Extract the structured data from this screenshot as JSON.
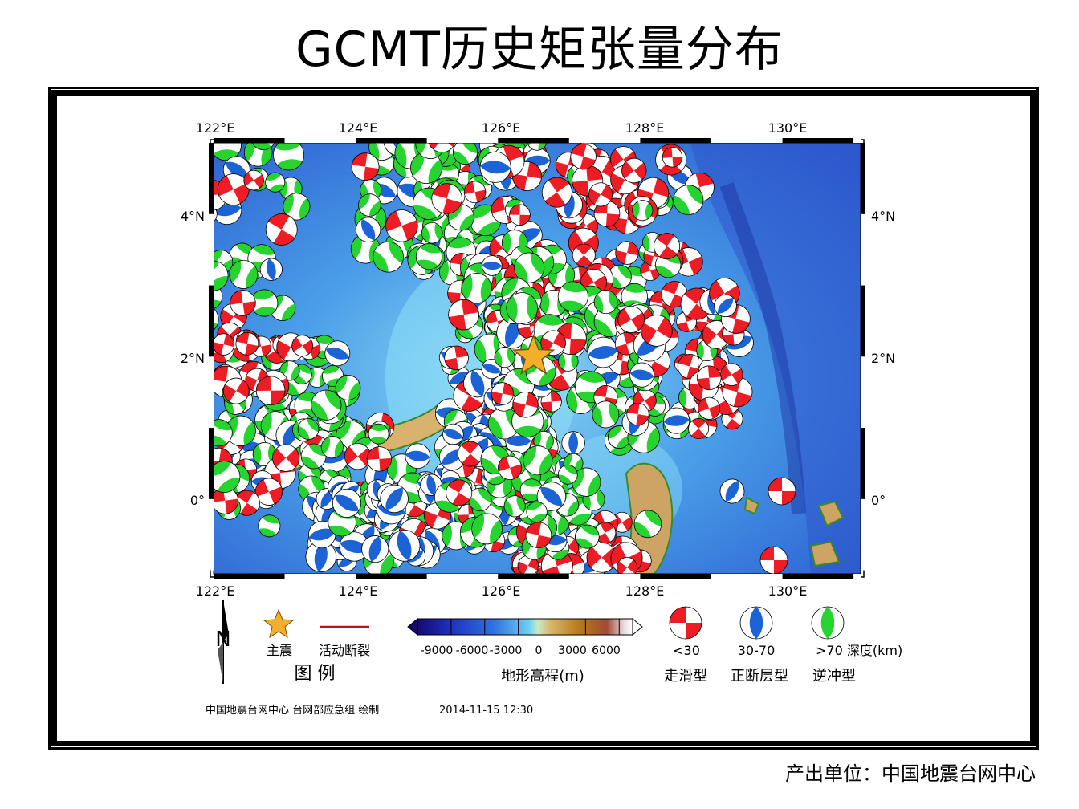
{
  "title": "GCMT历史矩张量分布",
  "map": {
    "lon_labels": [
      "122°E",
      "124°E",
      "126°E",
      "128°E",
      "130°E"
    ],
    "lat_labels": [
      "4°N",
      "2°N",
      "0°"
    ],
    "extent": {
      "lon_min": 122,
      "lon_max": 131.1,
      "lat_min": -1.05,
      "lat_max": 5.0
    },
    "mainshock": {
      "lon": 126.5,
      "lat": 2.0,
      "color": "#f2b02a"
    }
  },
  "legend": {
    "north_label": "N",
    "mainshock_label": "主震",
    "fault_label": "活动断裂",
    "legend_title": "图  例",
    "colorbar_ticks": [
      "-9000",
      "-6000",
      "-3000",
      "0",
      "3000",
      "6000"
    ],
    "colorbar_title": "地形高程(m)",
    "depth_labels": [
      "<30",
      "30-70",
      ">70 深度(km)"
    ],
    "type_labels": [
      "走滑型",
      "正断层型",
      "逆冲型"
    ],
    "depth_colors": [
      "#ee1c25",
      "#1c63d6",
      "#27d32f"
    ],
    "producer": "中国地震台网中心 台网部应急组 绘制",
    "timestamp": "2014-11-15 12:30"
  },
  "footer": "产出单位：中国地震台网中心"
}
